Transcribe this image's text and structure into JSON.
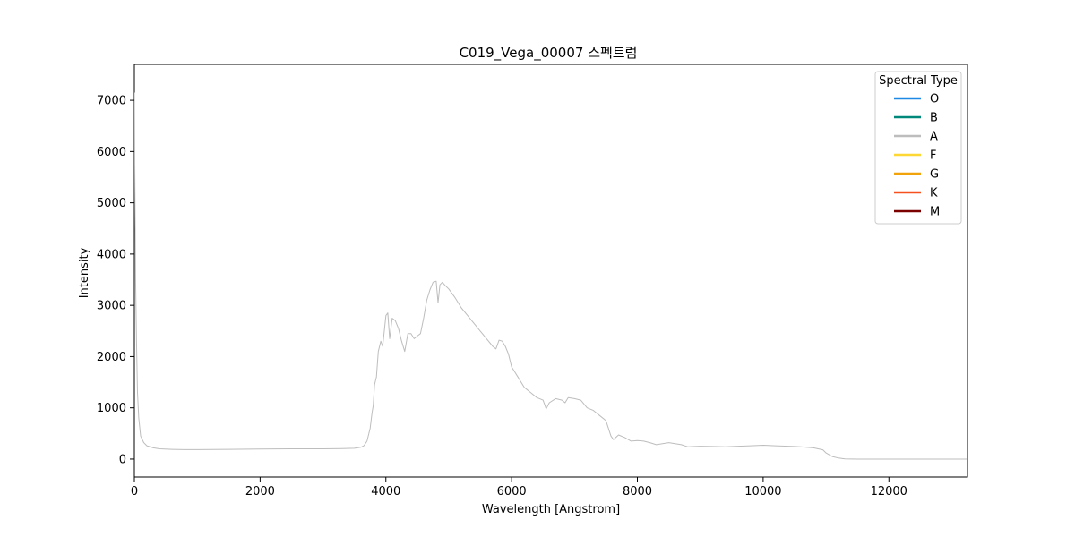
{
  "chart_data": {
    "type": "line",
    "title": "C019_Vega_00007 스펙트럼",
    "xlabel": "Wavelength [Angstrom]",
    "ylabel": "Intensity",
    "xlim": [
      0,
      13250
    ],
    "ylim": [
      -350,
      7700
    ],
    "x_ticks": [
      0,
      2000,
      4000,
      6000,
      8000,
      10000,
      12000
    ],
    "y_ticks": [
      0,
      1000,
      2000,
      3000,
      4000,
      5000,
      6000,
      7000
    ],
    "grid": false,
    "legend": {
      "title": "Spectral Type",
      "placement": "top-right",
      "entries": [
        {
          "label": "O",
          "color": "#1e88e5"
        },
        {
          "label": "B",
          "color": "#00897b"
        },
        {
          "label": "A",
          "color": "#bdbdbd"
        },
        {
          "label": "F",
          "color": "#fdd835"
        },
        {
          "label": "G",
          "color": "#f0a30a"
        },
        {
          "label": "K",
          "color": "#f4511e"
        },
        {
          "label": "M",
          "color": "#7b0000"
        }
      ]
    },
    "series": [
      {
        "name": "A",
        "color": "#bdbdbd",
        "points": [
          [
            0,
            7150
          ],
          [
            10,
            5200
          ],
          [
            20,
            3500
          ],
          [
            35,
            2200
          ],
          [
            50,
            1300
          ],
          [
            70,
            800
          ],
          [
            100,
            450
          ],
          [
            150,
            320
          ],
          [
            200,
            260
          ],
          [
            300,
            220
          ],
          [
            400,
            200
          ],
          [
            600,
            190
          ],
          [
            800,
            185
          ],
          [
            1000,
            185
          ],
          [
            1500,
            190
          ],
          [
            2000,
            195
          ],
          [
            2500,
            200
          ],
          [
            3000,
            200
          ],
          [
            3300,
            205
          ],
          [
            3500,
            210
          ],
          [
            3600,
            230
          ],
          [
            3650,
            260
          ],
          [
            3700,
            350
          ],
          [
            3750,
            600
          ],
          [
            3780,
            900
          ],
          [
            3800,
            1050
          ],
          [
            3820,
            1450
          ],
          [
            3850,
            1600
          ],
          [
            3880,
            2100
          ],
          [
            3920,
            2300
          ],
          [
            3950,
            2200
          ],
          [
            4000,
            2800
          ],
          [
            4030,
            2850
          ],
          [
            4060,
            2350
          ],
          [
            4100,
            2750
          ],
          [
            4150,
            2700
          ],
          [
            4200,
            2550
          ],
          [
            4250,
            2300
          ],
          [
            4300,
            2100
          ],
          [
            4350,
            2450
          ],
          [
            4400,
            2450
          ],
          [
            4450,
            2350
          ],
          [
            4500,
            2400
          ],
          [
            4550,
            2450
          ],
          [
            4600,
            2750
          ],
          [
            4650,
            3100
          ],
          [
            4700,
            3300
          ],
          [
            4750,
            3450
          ],
          [
            4800,
            3470
          ],
          [
            4830,
            3050
          ],
          [
            4860,
            3400
          ],
          [
            4900,
            3450
          ],
          [
            4950,
            3380
          ],
          [
            5000,
            3320
          ],
          [
            5100,
            3150
          ],
          [
            5200,
            2950
          ],
          [
            5300,
            2800
          ],
          [
            5400,
            2650
          ],
          [
            5500,
            2500
          ],
          [
            5600,
            2350
          ],
          [
            5700,
            2200
          ],
          [
            5750,
            2150
          ],
          [
            5800,
            2320
          ],
          [
            5850,
            2300
          ],
          [
            5900,
            2200
          ],
          [
            5950,
            2050
          ],
          [
            6000,
            1800
          ],
          [
            6100,
            1600
          ],
          [
            6200,
            1400
          ],
          [
            6300,
            1300
          ],
          [
            6400,
            1200
          ],
          [
            6500,
            1150
          ],
          [
            6550,
            980
          ],
          [
            6600,
            1100
          ],
          [
            6700,
            1180
          ],
          [
            6800,
            1150
          ],
          [
            6850,
            1100
          ],
          [
            6900,
            1200
          ],
          [
            7000,
            1180
          ],
          [
            7100,
            1150
          ],
          [
            7200,
            1000
          ],
          [
            7300,
            950
          ],
          [
            7400,
            850
          ],
          [
            7500,
            750
          ],
          [
            7580,
            450
          ],
          [
            7620,
            380
          ],
          [
            7700,
            470
          ],
          [
            7800,
            420
          ],
          [
            7900,
            350
          ],
          [
            8000,
            360
          ],
          [
            8100,
            350
          ],
          [
            8200,
            320
          ],
          [
            8300,
            280
          ],
          [
            8400,
            300
          ],
          [
            8500,
            320
          ],
          [
            8600,
            300
          ],
          [
            8700,
            280
          ],
          [
            8800,
            240
          ],
          [
            9000,
            250
          ],
          [
            9200,
            245
          ],
          [
            9400,
            240
          ],
          [
            9600,
            250
          ],
          [
            9800,
            260
          ],
          [
            10000,
            270
          ],
          [
            10200,
            260
          ],
          [
            10400,
            250
          ],
          [
            10600,
            240
          ],
          [
            10800,
            220
          ],
          [
            10950,
            180
          ],
          [
            11000,
            120
          ],
          [
            11100,
            50
          ],
          [
            11200,
            20
          ],
          [
            11300,
            5
          ],
          [
            11500,
            0
          ],
          [
            12000,
            0
          ],
          [
            12500,
            0
          ],
          [
            13250,
            0
          ]
        ]
      }
    ]
  }
}
